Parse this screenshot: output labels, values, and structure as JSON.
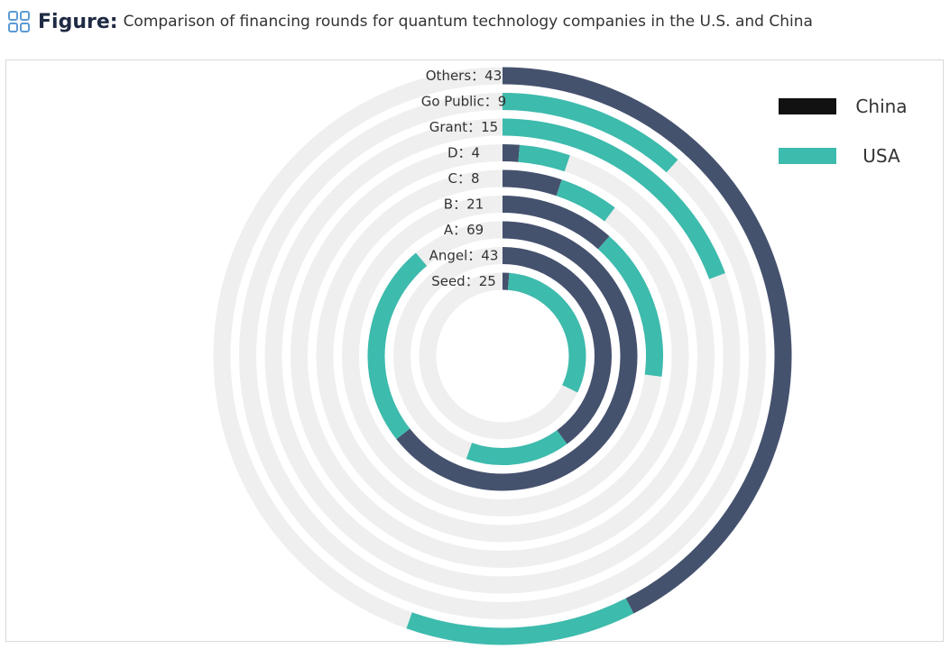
{
  "header": {
    "label": "Figure:",
    "title": "Comparison of financing rounds for quantum technology companies in the U.S. and China",
    "icon": "grid-icon"
  },
  "colors": {
    "china": "#45526e",
    "usa": "#3dbbad",
    "track": "#efefef",
    "legend_china_swatch": "#111111",
    "text": "#333333"
  },
  "chart_data": {
    "type": "radial-bar",
    "title": "Comparison of financing rounds for quantum technology companies in the U.S. and China",
    "legend": [
      "China",
      "USA"
    ],
    "legend_position": "top-right",
    "categories": [
      "Seed",
      "Angel",
      "A",
      "B",
      "C",
      "D",
      "Grant",
      "Go Public",
      "Others"
    ],
    "totals": [
      25,
      43,
      69,
      21,
      8,
      4,
      15,
      9,
      43
    ],
    "ring_labels": [
      "Seed：25",
      "Angel：43",
      "A：69",
      "B：21",
      "C：8",
      "D：4",
      "Grant：15",
      "Go Public：9",
      "Others：43"
    ],
    "series": [
      {
        "name": "China",
        "values": [
          1,
          31,
          50,
          9,
          4,
          1,
          0,
          0,
          33
        ]
      },
      {
        "name": "USA",
        "values": [
          24,
          12,
          19,
          12,
          4,
          3,
          15,
          9,
          10
        ]
      }
    ]
  }
}
